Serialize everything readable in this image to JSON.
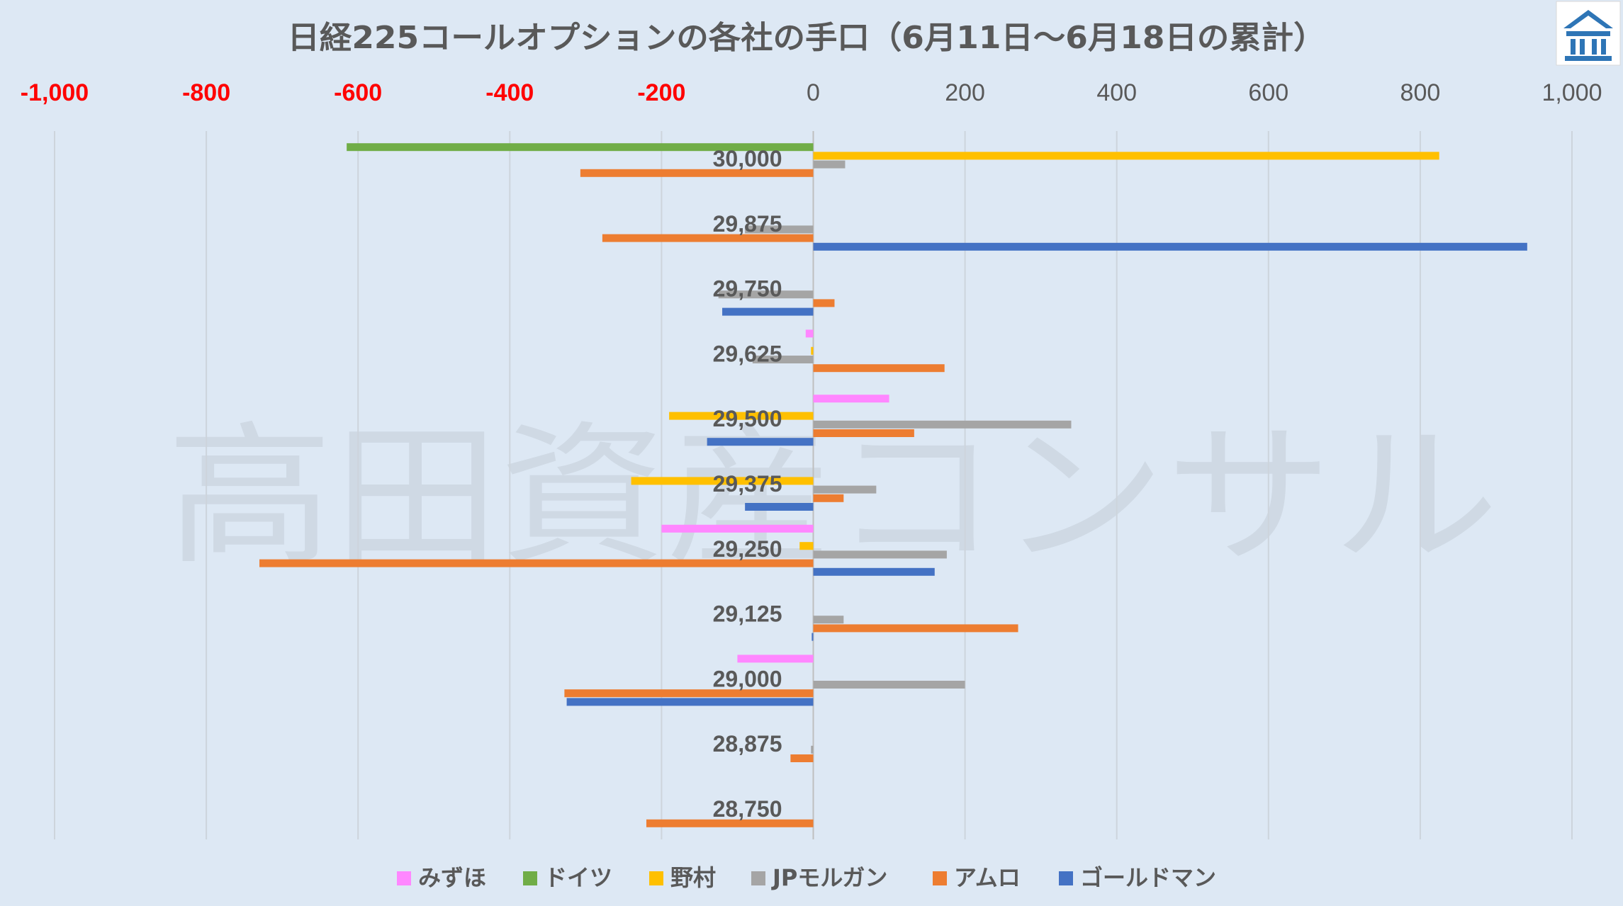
{
  "chart_data": {
    "type": "bar",
    "orientation": "horizontal",
    "title": "日経225コールオプションの各社の手口（6月11日～6月18日の累計）",
    "xlim": [
      -1000,
      1000
    ],
    "x_ticks": [
      "-1,000",
      "-800",
      "-600",
      "-400",
      "-200",
      "0",
      "200",
      "400",
      "600",
      "800",
      "1,000"
    ],
    "x_tick_values": [
      -1000,
      -800,
      -600,
      -400,
      -200,
      0,
      200,
      400,
      600,
      800,
      1000
    ],
    "negative_tick_color": "#ff0000",
    "positive_tick_color": "#595959",
    "axis_position": "top",
    "grid": true,
    "legend_position": "bottom",
    "categories": [
      "30,000",
      "29,875",
      "29,750",
      "29,625",
      "29,500",
      "29,375",
      "29,250",
      "29,125",
      "29,000",
      "28,875",
      "28,750"
    ],
    "series": [
      {
        "name": "みずほ",
        "color": "#ff87ff",
        "values": [
          0,
          0,
          0,
          -10,
          100,
          0,
          -200,
          0,
          -100,
          0,
          0
        ]
      },
      {
        "name": "ドイツ",
        "color": "#70ad47",
        "values": [
          -615,
          0,
          0,
          0,
          0,
          0,
          0,
          0,
          0,
          0,
          0
        ]
      },
      {
        "name": "野村",
        "color": "#ffc000",
        "values": [
          825,
          0,
          0,
          -3,
          -190,
          -240,
          -18,
          0,
          0,
          0,
          0
        ]
      },
      {
        "name": "JPモルガン",
        "color": "#a5a5a5",
        "values": [
          42,
          -90,
          -125,
          -80,
          340,
          83,
          176,
          40,
          200,
          -3,
          0
        ]
      },
      {
        "name": "アムロ",
        "color": "#ed7d31",
        "values": [
          -307,
          -278,
          28,
          173,
          133,
          40,
          -730,
          270,
          -328,
          -30,
          -220
        ]
      },
      {
        "name": "ゴールドマン",
        "color": "#4472c4",
        "values": [
          0,
          941,
          -120,
          0,
          -140,
          -90,
          160,
          -2,
          -325,
          0,
          0
        ]
      }
    ]
  },
  "watermark": {
    "text": "高田資産コンサル"
  },
  "logo": {
    "name": "building-icon",
    "color": "#2e75b6"
  }
}
